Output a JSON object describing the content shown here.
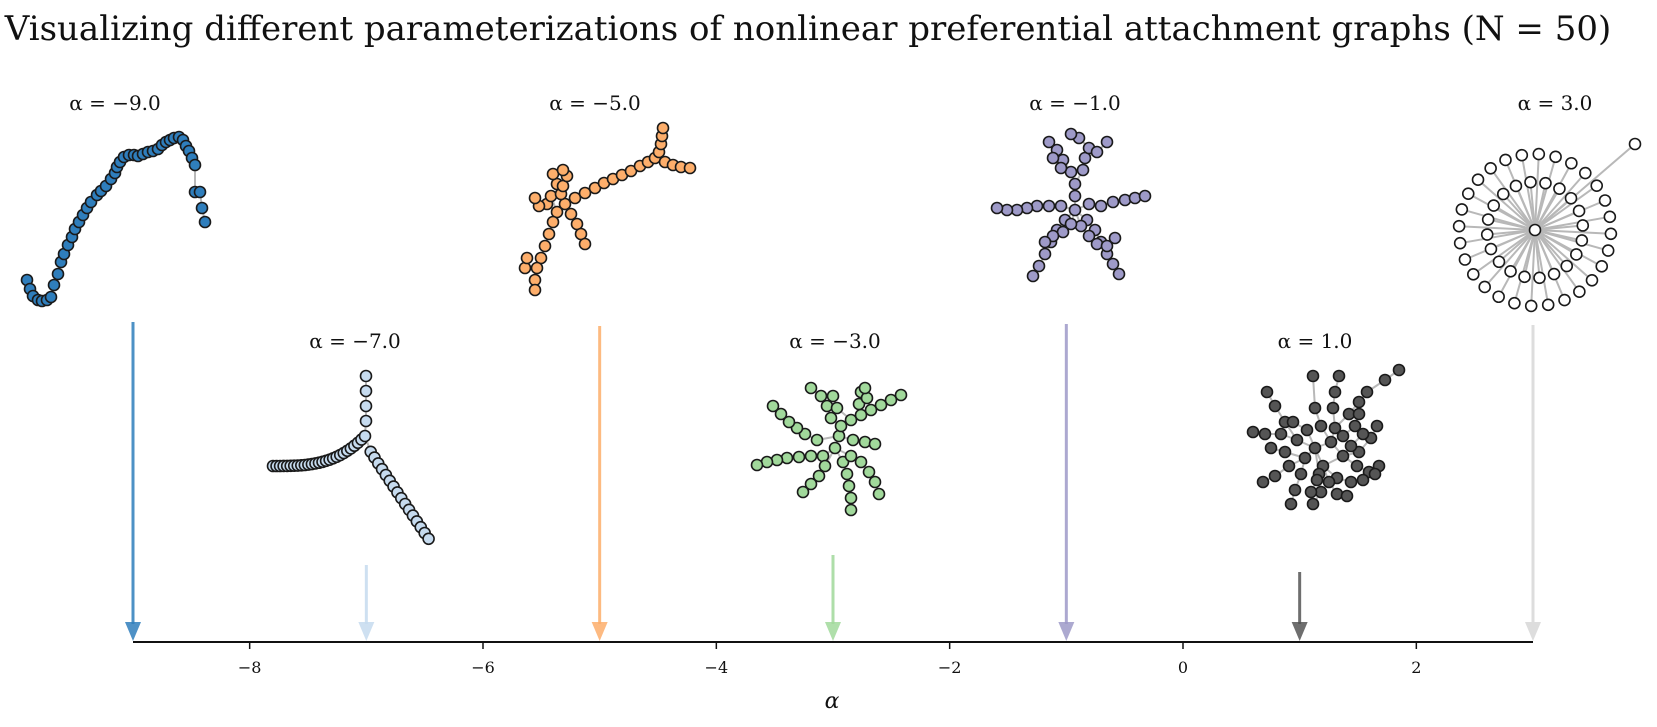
{
  "figure": {
    "title": "Visualizing different parameterizations of nonlinear preferential attachment graphs (N = 50)",
    "x_axis": {
      "label": "α",
      "range": [
        -9,
        3
      ],
      "ticks": [
        -8,
        -6,
        -4,
        -2,
        0,
        2
      ],
      "tick_labels": [
        "−8",
        "−6",
        "−4",
        "−2",
        "0",
        "2"
      ]
    },
    "panels": [
      {
        "alpha": -9.0,
        "label": "α = −9.0",
        "color": "#2f7ebc",
        "structure": "chain"
      },
      {
        "alpha": -7.0,
        "label": "α = −7.0",
        "color": "#c6dbef",
        "structure": "branching-chain"
      },
      {
        "alpha": -5.0,
        "label": "α = −5.0",
        "color": "#fdae6b",
        "structure": "tree"
      },
      {
        "alpha": -3.0,
        "label": "α = −3.0",
        "color": "#a1d99b",
        "structure": "tree"
      },
      {
        "alpha": -1.0,
        "label": "α = −1.0",
        "color": "#9e9ac8",
        "structure": "tree"
      },
      {
        "alpha": 1.0,
        "label": "α = 1.0",
        "color": "#555555",
        "structure": "hub-tree"
      },
      {
        "alpha": 3.0,
        "label": "α = 3.0",
        "color": "#ffffff",
        "structure": "star"
      }
    ]
  }
}
